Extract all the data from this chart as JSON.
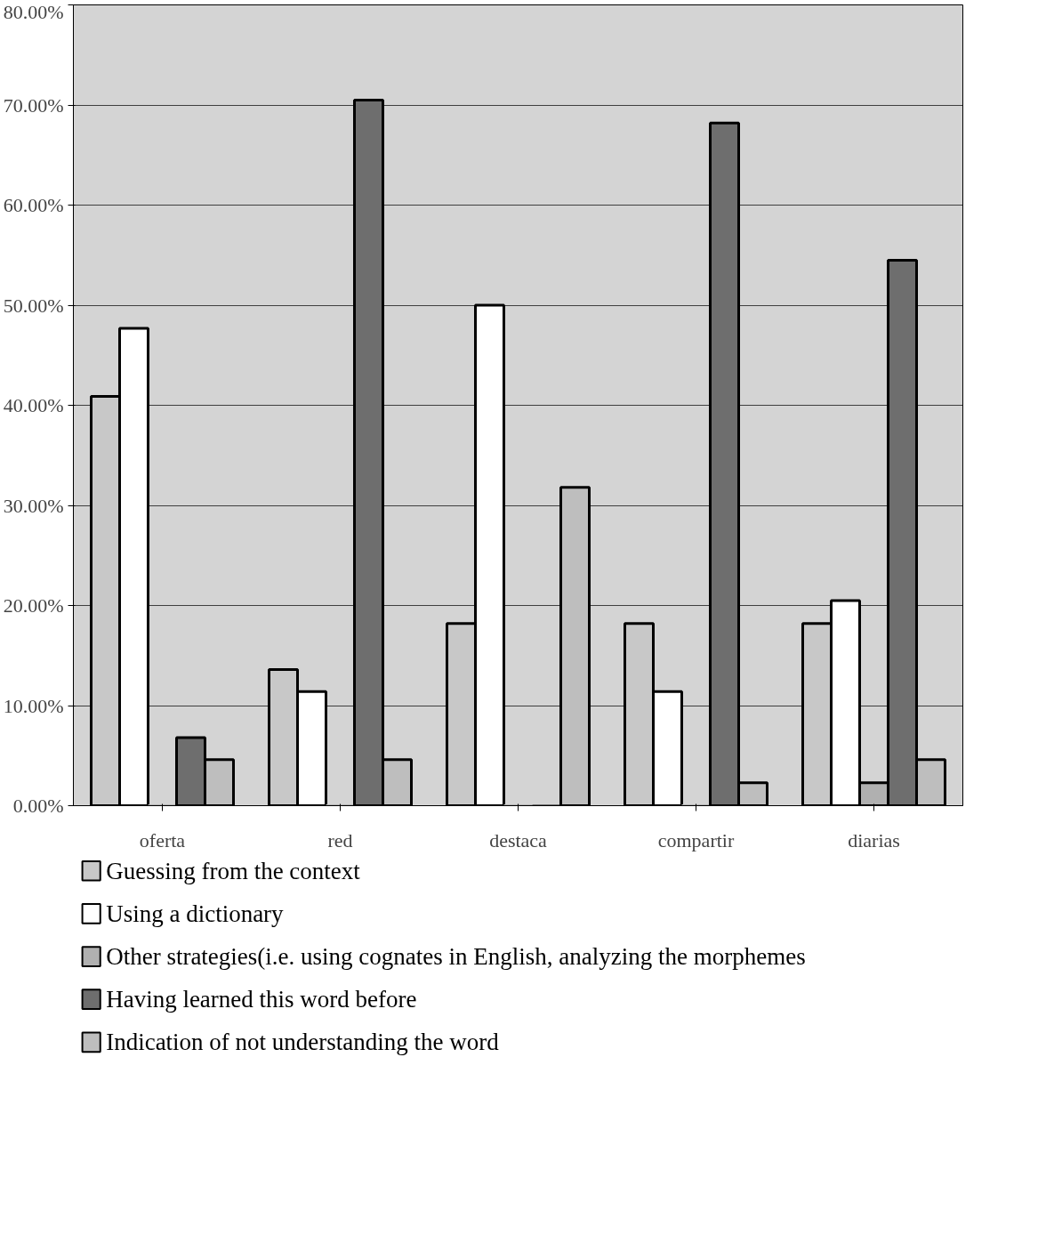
{
  "chart_data": {
    "type": "bar",
    "categories": [
      "oferta",
      "red",
      "destaca",
      "compartir",
      "diarias"
    ],
    "series": [
      {
        "name": "Guessing from the context",
        "color": "#c8c8c8",
        "values": [
          40.9,
          13.6,
          18.2,
          18.2,
          18.2
        ]
      },
      {
        "name": "Using a dictionary",
        "color": "#ffffff",
        "values": [
          47.7,
          11.4,
          50.0,
          11.4,
          20.5
        ]
      },
      {
        "name": "Other strategies(i.e. using cognates in English, analyzing the morphemes",
        "color": "#b0b0b0",
        "values": [
          0,
          0,
          0,
          0,
          2.3
        ]
      },
      {
        "name": "Having learned this word before",
        "color": "#6e6e6e",
        "values": [
          6.8,
          70.5,
          0,
          68.2,
          54.5
        ]
      },
      {
        "name": "Indication of not understanding the word",
        "color": "#bebebe",
        "values": [
          4.6,
          4.6,
          31.8,
          2.3,
          4.6
        ]
      }
    ],
    "ylim": [
      0,
      80
    ],
    "yticks": [
      {
        "value": 0,
        "label": "0.00%"
      },
      {
        "value": 10,
        "label": "10.00%"
      },
      {
        "value": 20,
        "label": "20.00%"
      },
      {
        "value": 30,
        "label": "30.00%"
      },
      {
        "value": 40,
        "label": "40.00%"
      },
      {
        "value": 50,
        "label": "50.00%"
      },
      {
        "value": 60,
        "label": "60.00%"
      },
      {
        "value": 70,
        "label": "70.00%"
      },
      {
        "value": 80,
        "label": "80.00%"
      }
    ],
    "grid": "y",
    "legend": "bottom"
  }
}
